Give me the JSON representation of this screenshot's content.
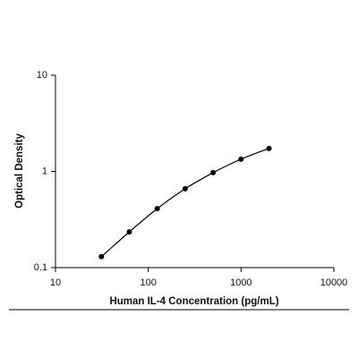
{
  "chart_data": {
    "type": "scatter",
    "x_label": "Human IL-4 Concentration (pg/mL)",
    "y_label": "Optical Density",
    "x": [
      31.25,
      62.5,
      125,
      250,
      500,
      1000,
      2000
    ],
    "series": [
      {
        "color": "#000000",
        "values": [
          0.13,
          0.235,
          0.41,
          0.66,
          0.97,
          1.34,
          1.73
        ]
      }
    ],
    "xlim": [
      10,
      10000
    ],
    "ylim": [
      0.1,
      10
    ],
    "xticks": [
      10,
      100,
      1000,
      10000
    ],
    "yticks": [
      0.1,
      1,
      10
    ],
    "xscale": "log",
    "yscale": "log",
    "curve": true
  }
}
